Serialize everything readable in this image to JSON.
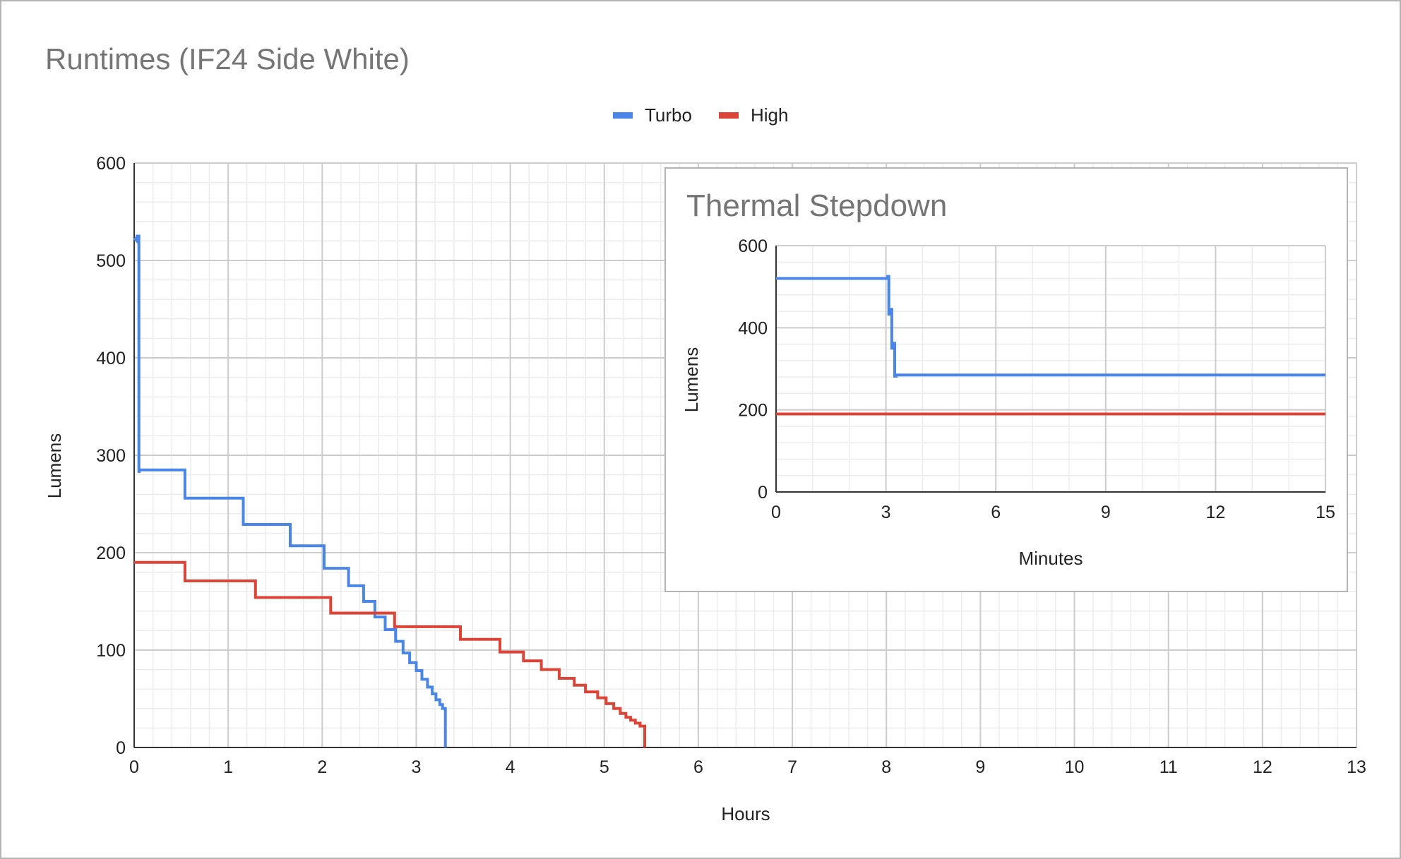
{
  "chart_data": [
    {
      "type": "line",
      "title": "Runtimes (IF24 Side White)",
      "xlabel": "Hours",
      "ylabel": "Lumens",
      "xlim": [
        0,
        13
      ],
      "ylim": [
        0,
        600
      ],
      "x_ticks": [
        "0",
        "1",
        "2",
        "3",
        "4",
        "5",
        "6",
        "7",
        "8",
        "9",
        "10",
        "11",
        "12",
        "13"
      ],
      "y_ticks": [
        "0",
        "100",
        "200",
        "300",
        "400",
        "500",
        "600"
      ],
      "grid": true,
      "legend": "top-center",
      "series": [
        {
          "name": "Turbo",
          "color": "#4a86e8",
          "points": [
            [
              0,
              523
            ],
            [
              0.03,
              520
            ],
            [
              0.03,
              525
            ],
            [
              0.05,
              525
            ],
            [
              0.05,
              282
            ],
            [
              0.06,
              285
            ],
            [
              0.54,
              285
            ],
            [
              0.54,
              256
            ],
            [
              1.16,
              256
            ],
            [
              1.16,
              229
            ],
            [
              1.66,
              229
            ],
            [
              1.66,
              207
            ],
            [
              2.02,
              207
            ],
            [
              2.02,
              184
            ],
            [
              2.28,
              184
            ],
            [
              2.28,
              166
            ],
            [
              2.44,
              166
            ],
            [
              2.44,
              150
            ],
            [
              2.56,
              150
            ],
            [
              2.56,
              134
            ],
            [
              2.67,
              134
            ],
            [
              2.67,
              121
            ],
            [
              2.78,
              121
            ],
            [
              2.78,
              109
            ],
            [
              2.86,
              109
            ],
            [
              2.86,
              97
            ],
            [
              2.93,
              97
            ],
            [
              2.93,
              87
            ],
            [
              3.0,
              87
            ],
            [
              3.0,
              79
            ],
            [
              3.06,
              79
            ],
            [
              3.06,
              70
            ],
            [
              3.12,
              70
            ],
            [
              3.12,
              62
            ],
            [
              3.17,
              62
            ],
            [
              3.17,
              55
            ],
            [
              3.21,
              55
            ],
            [
              3.21,
              49
            ],
            [
              3.25,
              49
            ],
            [
              3.25,
              44
            ],
            [
              3.28,
              44
            ],
            [
              3.28,
              40
            ],
            [
              3.31,
              40
            ],
            [
              3.31,
              0
            ]
          ]
        },
        {
          "name": "High",
          "color": "#db4437",
          "points": [
            [
              0,
              190
            ],
            [
              0.54,
              190
            ],
            [
              0.54,
              171
            ],
            [
              1.29,
              171
            ],
            [
              1.29,
              154
            ],
            [
              2.09,
              154
            ],
            [
              2.09,
              138
            ],
            [
              2.77,
              138
            ],
            [
              2.77,
              124
            ],
            [
              3.47,
              124
            ],
            [
              3.47,
              111
            ],
            [
              3.89,
              111
            ],
            [
              3.89,
              98
            ],
            [
              4.14,
              98
            ],
            [
              4.14,
              89
            ],
            [
              4.33,
              89
            ],
            [
              4.33,
              80
            ],
            [
              4.52,
              80
            ],
            [
              4.52,
              71
            ],
            [
              4.68,
              71
            ],
            [
              4.68,
              64
            ],
            [
              4.8,
              64
            ],
            [
              4.8,
              57
            ],
            [
              4.93,
              57
            ],
            [
              4.93,
              51
            ],
            [
              5.02,
              51
            ],
            [
              5.02,
              45
            ],
            [
              5.1,
              45
            ],
            [
              5.1,
              40
            ],
            [
              5.17,
              40
            ],
            [
              5.17,
              35
            ],
            [
              5.23,
              35
            ],
            [
              5.23,
              31
            ],
            [
              5.28,
              31
            ],
            [
              5.28,
              28
            ],
            [
              5.33,
              28
            ],
            [
              5.33,
              25
            ],
            [
              5.38,
              25
            ],
            [
              5.38,
              22
            ],
            [
              5.43,
              22
            ],
            [
              5.43,
              0
            ]
          ]
        }
      ]
    },
    {
      "type": "line",
      "title": "Thermal Stepdown",
      "xlabel": "Minutes",
      "ylabel": "Lumens",
      "xlim": [
        0,
        15
      ],
      "ylim": [
        0,
        600
      ],
      "x_ticks": [
        "0",
        "3",
        "6",
        "9",
        "12",
        "15"
      ],
      "y_ticks": [
        "0",
        "200",
        "400",
        "600"
      ],
      "grid": true,
      "series": [
        {
          "name": "Turbo",
          "color": "#4a86e8",
          "points": [
            [
              0,
              520
            ],
            [
              3.05,
              520
            ],
            [
              3.05,
              525
            ],
            [
              3.08,
              525
            ],
            [
              3.08,
              433
            ],
            [
              3.12,
              433
            ],
            [
              3.12,
              445
            ],
            [
              3.16,
              445
            ],
            [
              3.16,
              350
            ],
            [
              3.2,
              350
            ],
            [
              3.2,
              362
            ],
            [
              3.24,
              362
            ],
            [
              3.24,
              282
            ],
            [
              3.28,
              282
            ],
            [
              3.28,
              285
            ],
            [
              15,
              285
            ]
          ]
        },
        {
          "name": "High",
          "color": "#db4437",
          "points": [
            [
              0,
              190
            ],
            [
              15,
              190
            ]
          ]
        }
      ]
    }
  ]
}
